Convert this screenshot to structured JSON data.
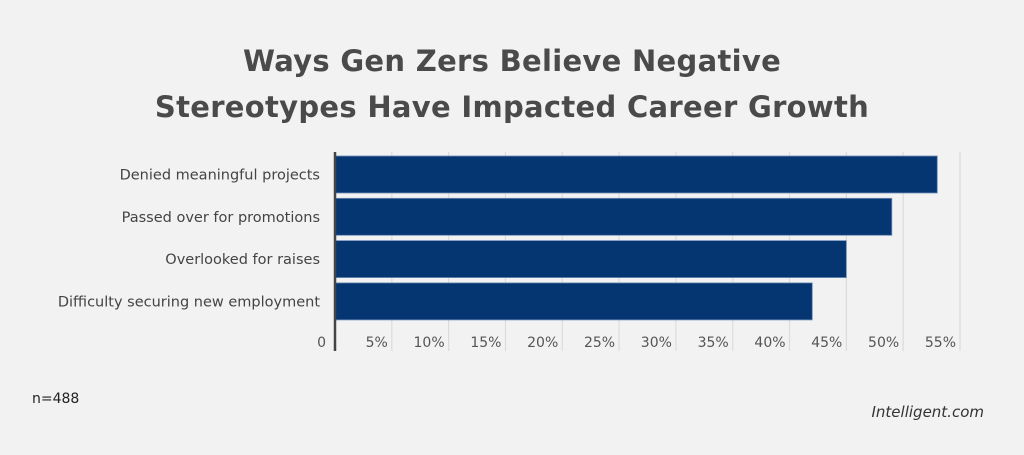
{
  "chart_data": {
    "type": "bar",
    "orientation": "horizontal",
    "title": "Ways Gen Zers Believe Negative Stereotypes Have Impacted Career Growth",
    "categories": [
      "Denied meaningful projects",
      "Passed over for promotions",
      "Overlooked for raises",
      "Difficulty securing new employment"
    ],
    "values": [
      53,
      49,
      45,
      42
    ],
    "unit": "%",
    "xlim": [
      0,
      55
    ],
    "xticks": [
      "0",
      "5%",
      "10%",
      "15%",
      "20%",
      "25%",
      "30%",
      "35%",
      "40%",
      "45%",
      "50%",
      "55%"
    ],
    "grid": true,
    "bar_color": "#063672"
  },
  "footer": {
    "note": "n=488",
    "brand": "Intelligent.com"
  }
}
